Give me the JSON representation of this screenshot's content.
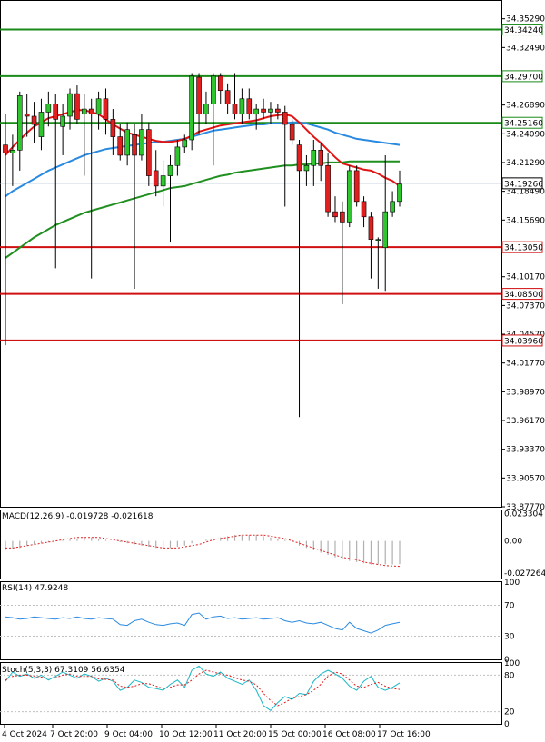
{
  "chart_data": [
    {
      "type": "candlestick",
      "panel": "price",
      "ylim": [
        33.8777,
        34.3703
      ],
      "y_ticks": [
        "34.35290",
        "34.32490",
        "34.26890",
        "34.24090",
        "34.21290",
        "34.18490",
        "34.15690",
        "34.10170",
        "34.07370",
        "34.04570",
        "34.01770",
        "33.98970",
        "33.96170",
        "33.93370",
        "33.90570",
        "33.87770"
      ],
      "x_labels": [
        "4 Oct 2024",
        "7 Oct 20:00",
        "9 Oct 04:00",
        "10 Oct 12:00",
        "11 Oct 20:00",
        "15 Oct 00:00",
        "16 Oct 08:00",
        "17 Oct 16:00"
      ],
      "current_price": "34.19266",
      "horizontal_levels": [
        {
          "value": "34.34240",
          "color": "#1a8a1a"
        },
        {
          "value": "34.29700",
          "color": "#1a8a1a"
        },
        {
          "value": "34.25160",
          "color": "#1a8a1a"
        },
        {
          "value": "34.13050",
          "color": "#d01010"
        },
        {
          "value": "34.08500",
          "color": "#d01010"
        },
        {
          "value": "34.03960",
          "color": "#d01010"
        }
      ],
      "candles": [
        {
          "o": 34.23,
          "h": 34.26,
          "l": 34.035,
          "c": 34.222
        },
        {
          "o": 34.222,
          "h": 34.24,
          "l": 34.19,
          "c": 34.225
        },
        {
          "o": 34.225,
          "h": 34.282,
          "l": 34.205,
          "c": 34.278
        },
        {
          "o": 34.26,
          "h": 34.28,
          "l": 34.238,
          "c": 34.258
        },
        {
          "o": 34.258,
          "h": 34.272,
          "l": 34.232,
          "c": 34.25
        },
        {
          "o": 34.238,
          "h": 34.275,
          "l": 34.225,
          "c": 34.262
        },
        {
          "o": 34.262,
          "h": 34.282,
          "l": 34.248,
          "c": 34.27
        },
        {
          "o": 34.27,
          "h": 34.28,
          "l": 34.11,
          "c": 34.255
        },
        {
          "o": 34.248,
          "h": 34.27,
          "l": 34.22,
          "c": 34.258
        },
        {
          "o": 34.258,
          "h": 34.285,
          "l": 34.245,
          "c": 34.28
        },
        {
          "o": 34.28,
          "h": 34.288,
          "l": 34.25,
          "c": 34.255
        },
        {
          "o": 34.26,
          "h": 34.28,
          "l": 34.2,
          "c": 34.265
        },
        {
          "o": 34.265,
          "h": 34.275,
          "l": 34.1,
          "c": 34.26
        },
        {
          "o": 34.26,
          "h": 34.282,
          "l": 34.245,
          "c": 34.275
        },
        {
          "o": 34.275,
          "h": 34.285,
          "l": 34.24,
          "c": 34.255
        },
        {
          "o": 34.255,
          "h": 34.265,
          "l": 34.22,
          "c": 34.238
        },
        {
          "o": 34.238,
          "h": 34.25,
          "l": 34.215,
          "c": 34.22
        },
        {
          "o": 34.22,
          "h": 34.252,
          "l": 34.21,
          "c": 34.245
        },
        {
          "o": 34.24,
          "h": 34.25,
          "l": 34.09,
          "c": 34.22
        },
        {
          "o": 34.22,
          "h": 34.26,
          "l": 34.215,
          "c": 34.245
        },
        {
          "o": 34.245,
          "h": 34.252,
          "l": 34.19,
          "c": 34.2
        },
        {
          "o": 34.205,
          "h": 34.225,
          "l": 34.18,
          "c": 34.19
        },
        {
          "o": 34.19,
          "h": 34.215,
          "l": 34.17,
          "c": 34.2
        },
        {
          "o": 34.2,
          "h": 34.22,
          "l": 34.135,
          "c": 34.21
        },
        {
          "o": 34.21,
          "h": 34.235,
          "l": 34.2,
          "c": 34.228
        },
        {
          "o": 34.228,
          "h": 34.24,
          "l": 34.222,
          "c": 34.235
        },
        {
          "o": 34.235,
          "h": 34.3,
          "l": 34.225,
          "c": 34.297
        },
        {
          "o": 34.296,
          "h": 34.3,
          "l": 34.24,
          "c": 34.26
        },
        {
          "o": 34.26,
          "h": 34.282,
          "l": 34.25,
          "c": 34.27
        },
        {
          "o": 34.27,
          "h": 34.3,
          "l": 34.21,
          "c": 34.297
        },
        {
          "o": 34.297,
          "h": 34.3,
          "l": 34.27,
          "c": 34.283
        },
        {
          "o": 34.283,
          "h": 34.29,
          "l": 34.26,
          "c": 34.27
        },
        {
          "o": 34.27,
          "h": 34.3,
          "l": 34.255,
          "c": 34.26
        },
        {
          "o": 34.26,
          "h": 34.285,
          "l": 34.25,
          "c": 34.275
        },
        {
          "o": 34.275,
          "h": 34.285,
          "l": 34.255,
          "c": 34.26
        },
        {
          "o": 34.26,
          "h": 34.27,
          "l": 34.245,
          "c": 34.265
        },
        {
          "o": 34.265,
          "h": 34.275,
          "l": 34.255,
          "c": 34.262
        },
        {
          "o": 34.262,
          "h": 34.272,
          "l": 34.25,
          "c": 34.265
        },
        {
          "o": 34.265,
          "h": 34.27,
          "l": 34.255,
          "c": 34.262
        },
        {
          "o": 34.262,
          "h": 34.268,
          "l": 34.17,
          "c": 34.25
        },
        {
          "o": 34.25,
          "h": 34.255,
          "l": 34.23,
          "c": 34.235
        },
        {
          "o": 34.23,
          "h": 34.235,
          "l": 33.965,
          "c": 34.205
        },
        {
          "o": 34.205,
          "h": 34.22,
          "l": 34.19,
          "c": 34.21
        },
        {
          "o": 34.21,
          "h": 34.235,
          "l": 34.19,
          "c": 34.225
        },
        {
          "o": 34.225,
          "h": 34.232,
          "l": 34.195,
          "c": 34.21
        },
        {
          "o": 34.21,
          "h": 34.222,
          "l": 34.16,
          "c": 34.165
        },
        {
          "o": 34.165,
          "h": 34.18,
          "l": 34.155,
          "c": 34.16
        },
        {
          "o": 34.165,
          "h": 34.175,
          "l": 34.075,
          "c": 34.155
        },
        {
          "o": 34.155,
          "h": 34.21,
          "l": 34.15,
          "c": 34.205
        },
        {
          "o": 34.205,
          "h": 34.21,
          "l": 34.17,
          "c": 34.175
        },
        {
          "o": 34.175,
          "h": 34.18,
          "l": 34.15,
          "c": 34.16
        },
        {
          "o": 34.16,
          "h": 34.165,
          "l": 34.1,
          "c": 34.138
        },
        {
          "o": 34.138,
          "h": 34.14,
          "l": 34.09,
          "c": 34.138
        },
        {
          "o": 34.13,
          "h": 34.22,
          "l": 34.088,
          "c": 34.165
        },
        {
          "o": 34.165,
          "h": 34.185,
          "l": 34.16,
          "c": 34.175
        },
        {
          "o": 34.175,
          "h": 34.205,
          "l": 34.17,
          "c": 34.192
        }
      ],
      "ma_red": [
        34.22,
        34.228,
        34.235,
        34.242,
        34.248,
        34.252,
        34.256,
        34.258,
        34.26,
        34.262,
        34.264,
        34.264,
        34.262,
        34.26,
        34.255,
        34.25,
        34.246,
        34.242,
        34.24,
        34.238,
        34.236,
        34.234,
        34.233,
        34.233,
        34.234,
        34.236,
        34.239,
        34.243,
        34.245,
        34.247,
        34.249,
        34.25,
        34.251,
        34.252,
        34.253,
        34.254,
        34.256,
        34.258,
        34.259,
        34.26,
        34.258,
        34.252,
        34.245,
        34.238,
        34.232,
        34.225,
        34.218,
        34.212,
        34.21,
        34.208,
        34.206,
        34.205,
        34.202,
        34.198,
        34.195,
        34.19
      ],
      "ma_blue": [
        34.18,
        34.185,
        34.189,
        34.193,
        34.197,
        34.201,
        34.205,
        34.208,
        34.211,
        34.214,
        34.217,
        34.22,
        34.222,
        34.224,
        34.226,
        34.227,
        34.228,
        34.229,
        34.23,
        34.231,
        34.232,
        34.233,
        34.233,
        34.234,
        34.235,
        34.236,
        34.238,
        34.24,
        34.242,
        34.244,
        34.245,
        34.246,
        34.247,
        34.248,
        34.249,
        34.25,
        34.25,
        34.251,
        34.251,
        34.251,
        34.252,
        34.252,
        34.251,
        34.249,
        34.247,
        34.245,
        34.242,
        34.24,
        34.238,
        34.236,
        34.235,
        34.234,
        34.233,
        34.232,
        34.231,
        34.23
      ],
      "ma_green": [
        34.12,
        34.125,
        34.13,
        34.135,
        34.14,
        34.144,
        34.148,
        34.152,
        34.155,
        34.158,
        34.161,
        34.164,
        34.166,
        34.168,
        34.17,
        34.172,
        34.174,
        34.176,
        34.178,
        34.18,
        34.182,
        34.184,
        34.186,
        34.188,
        34.189,
        34.19,
        34.192,
        34.194,
        34.196,
        34.198,
        34.2,
        34.201,
        34.203,
        34.204,
        34.205,
        34.206,
        34.207,
        34.208,
        34.209,
        34.21,
        34.21,
        34.211,
        34.211,
        34.212,
        34.212,
        34.213,
        34.213,
        34.213,
        34.214,
        34.214,
        34.214,
        34.214,
        34.214,
        34.214,
        34.214,
        34.214
      ]
    },
    {
      "type": "bar",
      "panel": "macd",
      "title": "MACD(12,26,9) -0.019728 -0.021618",
      "y_ticks": [
        "0.023304",
        "0.00",
        "-0.027264"
      ],
      "ylim": [
        -0.032,
        0.026
      ],
      "histogram": [
        -0.008,
        -0.007,
        -0.006,
        -0.004,
        -0.003,
        -0.002,
        -0.001,
        0.0,
        0.001,
        0.002,
        0.002,
        0.003,
        0.003,
        0.002,
        0.001,
        0.0,
        -0.001,
        -0.002,
        -0.003,
        -0.004,
        -0.005,
        -0.006,
        -0.006,
        -0.006,
        -0.005,
        -0.004,
        -0.002,
        0.0,
        0.001,
        0.002,
        0.003,
        0.004,
        0.005,
        0.005,
        0.005,
        0.005,
        0.004,
        0.003,
        0.002,
        0.001,
        -0.001,
        -0.004,
        -0.006,
        -0.008,
        -0.01,
        -0.012,
        -0.014,
        -0.016,
        -0.017,
        -0.018,
        -0.019,
        -0.02,
        -0.02,
        -0.02,
        -0.02,
        -0.019728
      ],
      "signal": [
        -0.006,
        -0.006,
        -0.005,
        -0.004,
        -0.003,
        -0.002,
        -0.001,
        0.0,
        0.001,
        0.002,
        0.003,
        0.003,
        0.003,
        0.003,
        0.002,
        0.001,
        0.0,
        -0.001,
        -0.002,
        -0.003,
        -0.004,
        -0.005,
        -0.006,
        -0.006,
        -0.006,
        -0.005,
        -0.004,
        -0.003,
        -0.001,
        0.001,
        0.002,
        0.003,
        0.004,
        0.005,
        0.005,
        0.005,
        0.005,
        0.004,
        0.003,
        0.002,
        0.0,
        -0.002,
        -0.004,
        -0.006,
        -0.008,
        -0.01,
        -0.012,
        -0.014,
        -0.015,
        -0.016,
        -0.018,
        -0.019,
        -0.02,
        -0.021,
        -0.0213,
        -0.021618
      ]
    },
    {
      "type": "line",
      "panel": "rsi",
      "title": "RSI(14) 47.9248",
      "y_ticks": [
        "100",
        "70",
        "30",
        "0"
      ],
      "ylim": [
        0,
        100
      ],
      "values": [
        55,
        54,
        52,
        53,
        55,
        54,
        53,
        52,
        54,
        53,
        55,
        53,
        52,
        54,
        53,
        52,
        45,
        44,
        50,
        52,
        48,
        45,
        44,
        46,
        47,
        44,
        58,
        60,
        52,
        55,
        56,
        53,
        54,
        52,
        53,
        54,
        52,
        53,
        54,
        50,
        48,
        50,
        47,
        46,
        48,
        44,
        40,
        38,
        48,
        40,
        37,
        34,
        38,
        44,
        46,
        47.9248
      ]
    },
    {
      "type": "line",
      "panel": "stoch",
      "title": "Stoch(5,3,3) 67.3109 56.6354",
      "y_ticks": [
        "100",
        "80",
        "20",
        "0"
      ],
      "ylim": [
        0,
        100
      ],
      "k": [
        70,
        85,
        78,
        82,
        75,
        80,
        72,
        78,
        85,
        80,
        75,
        82,
        78,
        70,
        75,
        70,
        55,
        60,
        72,
        68,
        60,
        58,
        55,
        65,
        72,
        60,
        88,
        95,
        82,
        78,
        85,
        75,
        70,
        65,
        72,
        55,
        30,
        22,
        35,
        45,
        40,
        50,
        48,
        70,
        82,
        88,
        82,
        75,
        62,
        55,
        70,
        78,
        60,
        55,
        60,
        67.3109
      ],
      "d": [
        72,
        78,
        80,
        80,
        78,
        77,
        75,
        76,
        80,
        82,
        78,
        78,
        78,
        74,
        73,
        72,
        62,
        60,
        62,
        66,
        66,
        62,
        58,
        60,
        64,
        64,
        72,
        82,
        88,
        85,
        82,
        80,
        76,
        72,
        70,
        64,
        50,
        38,
        30,
        35,
        42,
        45,
        48,
        55,
        65,
        78,
        85,
        82,
        72,
        62,
        60,
        65,
        68,
        62,
        58,
        56.6354
      ]
    }
  ]
}
